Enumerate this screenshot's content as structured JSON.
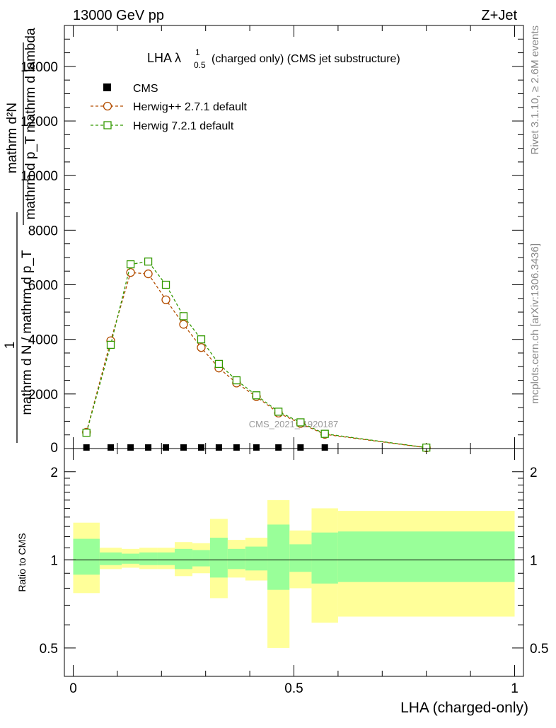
{
  "header": {
    "energy": "13000 GeV pp",
    "process": "Z+Jet"
  },
  "plot_title": {
    "main": "LHA λ",
    "sup": "1",
    "sub": "0.5",
    "rest": "(charged only) (CMS jet substructure)"
  },
  "side_labels": {
    "rivet": "Rivet 3.1.10, ≥ 2.6M events",
    "mcplots": "mcplots.cern.ch [arXiv:1306.3436]"
  },
  "watermark": "CMS_2021_I1920187",
  "ylabel_main": {
    "top_num": "mathrm d²N",
    "top_den": "mathrm d p_T mathrm d lambda",
    "one": "1",
    "bottom_den": "mathrm d N / mathrm d p_T"
  },
  "ylabel_ratio": "Ratio to CMS",
  "xlabel": "LHA (charged-only)",
  "colors": {
    "herwigpp": "#b34d00",
    "herwig7": "#339900",
    "band_outer": "#ffff99",
    "band_inner": "#99ff99"
  },
  "chart_data": [
    {
      "type": "line",
      "panel": "main",
      "xlim": [
        -0.02,
        1.02
      ],
      "ylim": [
        0,
        15500
      ],
      "y_ticks": [
        2000,
        4000,
        6000,
        8000,
        10000,
        12000,
        14000
      ],
      "y_tick_labels": [
        "2000",
        "4000",
        "6000",
        "8000",
        "10000",
        "12000",
        "14000"
      ],
      "y_zero_label": "0",
      "legend_position": "top-left",
      "series": [
        {
          "name": "CMS",
          "marker": "square",
          "x": [
            0.03,
            0.085,
            0.13,
            0.17,
            0.21,
            0.25,
            0.29,
            0.33,
            0.37,
            0.415,
            0.465,
            0.515,
            0.57
          ],
          "values": [
            0,
            0,
            0,
            0,
            0,
            0,
            0,
            0,
            0,
            0,
            0,
            0,
            0
          ]
        },
        {
          "name": "Herwig++ 2.7.1 default",
          "marker": "circle",
          "x": [
            0.03,
            0.085,
            0.13,
            0.17,
            0.21,
            0.25,
            0.29,
            0.33,
            0.37,
            0.415,
            0.465,
            0.515,
            0.57,
            0.8
          ],
          "values": [
            600,
            3950,
            6450,
            6400,
            5450,
            4550,
            3700,
            2950,
            2400,
            1900,
            1300,
            920,
            520,
            30
          ]
        },
        {
          "name": "Herwig 7.2.1 default",
          "marker": "open-square",
          "x": [
            0.03,
            0.085,
            0.13,
            0.17,
            0.21,
            0.25,
            0.29,
            0.33,
            0.37,
            0.415,
            0.465,
            0.515,
            0.57,
            0.8
          ],
          "values": [
            580,
            3800,
            6750,
            6850,
            6000,
            4850,
            4000,
            3100,
            2500,
            1950,
            1350,
            960,
            540,
            35
          ]
        }
      ]
    },
    {
      "type": "area",
      "panel": "ratio",
      "xlim": [
        -0.02,
        1.02
      ],
      "ylim": [
        0.4,
        2.4
      ],
      "y_scale": "log",
      "reference_line": 1,
      "y_ticks_major": [
        0.5,
        1,
        2
      ],
      "y_tick_labels": [
        "0.5",
        "1",
        "2"
      ],
      "x_ticks_major": [
        0,
        0.5,
        1
      ],
      "x_tick_labels": [
        "0",
        "0.5",
        "1"
      ],
      "bins": [
        0,
        0.06,
        0.11,
        0.15,
        0.19,
        0.23,
        0.27,
        0.31,
        0.35,
        0.39,
        0.44,
        0.49,
        0.54,
        0.6,
        1.0
      ],
      "outer_low": [
        0.77,
        0.93,
        0.94,
        0.93,
        0.93,
        0.88,
        0.9,
        0.74,
        0.87,
        0.85,
        0.5,
        0.8,
        0.61,
        0.64
      ],
      "outer_high": [
        1.34,
        1.1,
        1.09,
        1.1,
        1.1,
        1.15,
        1.14,
        1.38,
        1.17,
        1.19,
        1.6,
        1.26,
        1.5,
        1.47
      ],
      "inner_low": [
        0.89,
        0.96,
        0.97,
        0.96,
        0.96,
        0.93,
        0.95,
        0.87,
        0.93,
        0.92,
        0.79,
        0.91,
        0.83,
        0.84
      ],
      "inner_high": [
        1.18,
        1.06,
        1.05,
        1.06,
        1.06,
        1.09,
        1.08,
        1.19,
        1.09,
        1.11,
        1.32,
        1.13,
        1.24,
        1.25
      ]
    }
  ]
}
